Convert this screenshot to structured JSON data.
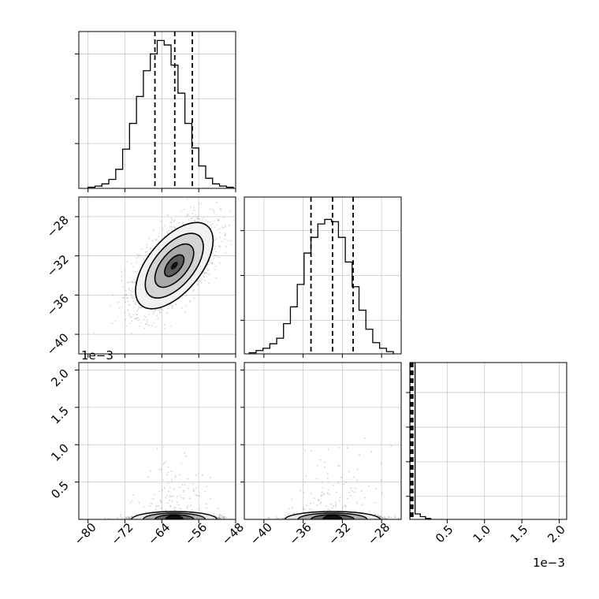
{
  "colors": {
    "line": "#000000",
    "grid": "#c8c8c8",
    "points": "#8a8a8a",
    "background": "#ffffff"
  },
  "chart_data": [
    {
      "type": "histogram",
      "panel": "x-marginal",
      "xlim": [
        -82,
        -48
      ],
      "grid": true,
      "quantiles": [
        -65.5,
        -61.2,
        -57.4
      ],
      "bin_edges": [
        -80,
        -78.5,
        -77,
        -75.5,
        -74,
        -72.5,
        -71,
        -69.5,
        -68,
        -66.5,
        -65,
        -63.5,
        -62,
        -60.5,
        -59,
        -57.5,
        -56,
        -54.5,
        -53,
        -51.5,
        -50,
        -48.5
      ],
      "counts": [
        1,
        2,
        4,
        8,
        17,
        35,
        58,
        82,
        105,
        120,
        132,
        128,
        110,
        85,
        58,
        36,
        20,
        9,
        4,
        2,
        1
      ],
      "ylim": [
        0,
        140
      ]
    },
    {
      "type": "histogram",
      "panel": "y-marginal",
      "xlim": [
        -42,
        -26
      ],
      "grid": true,
      "quantiles": [
        -35.2,
        -33.0,
        -30.9
      ],
      "bin_edges": [
        -41.5,
        -40.8,
        -40.1,
        -39.4,
        -38.7,
        -38,
        -37.3,
        -36.6,
        -35.9,
        -35.2,
        -34.5,
        -33.8,
        -33.1,
        -32.4,
        -31.7,
        -31,
        -30.3,
        -29.6,
        -28.9,
        -28.2,
        -27.5,
        -26.8
      ],
      "counts": [
        1,
        3,
        5,
        9,
        14,
        27,
        42,
        62,
        90,
        104,
        116,
        120,
        118,
        104,
        82,
        60,
        39,
        22,
        10,
        5,
        2
      ],
      "ylim": [
        0,
        140
      ]
    },
    {
      "type": "histogram",
      "panel": "z-marginal",
      "xlim": [
        0,
        0.0021
      ],
      "grid": true,
      "quantiles": [
        1e-05,
        2e-05,
        4e-05
      ],
      "bin_edges": [
        0.0,
        7e-05,
        0.00014,
        0.00021,
        0.00028
      ],
      "counts": [
        340,
        12,
        6,
        2
      ],
      "ylim": [
        0,
        340
      ]
    },
    {
      "type": "scatter",
      "panel": "x-vs-y",
      "xlim": [
        -82,
        -48
      ],
      "ylim": [
        -42,
        -26
      ],
      "center": [
        -61.3,
        -33.0
      ],
      "sd": [
        4.2,
        2.2
      ],
      "correlation": 0.58,
      "contour_levels_sigma": [
        0.5,
        1.0,
        1.5,
        2.0
      ]
    },
    {
      "type": "scatter",
      "panel": "x-vs-z",
      "xlim": [
        -82,
        -48
      ],
      "ylim": [
        0,
        0.0021
      ],
      "center": [
        -61.3,
        2e-05
      ]
    },
    {
      "type": "scatter",
      "panel": "y-vs-z",
      "xlim": [
        -42,
        -26
      ],
      "ylim": [
        0,
        0.0021
      ],
      "center": [
        -33.0,
        2e-05
      ]
    }
  ],
  "ticks": {
    "col1_x": [
      {
        "v": -80,
        "label": "−80"
      },
      {
        "v": -72,
        "label": "−72"
      },
      {
        "v": -64,
        "label": "−64"
      },
      {
        "v": -56,
        "label": "−56"
      },
      {
        "v": -48,
        "label": "−48"
      }
    ],
    "col2_x": [
      {
        "v": -40,
        "label": "−40"
      },
      {
        "v": -36,
        "label": "−36"
      },
      {
        "v": -32,
        "label": "−32"
      },
      {
        "v": -28,
        "label": "−28"
      }
    ],
    "col3_x": [
      {
        "v": 0.0005,
        "label": "0.5"
      },
      {
        "v": 0.001,
        "label": "1.0"
      },
      {
        "v": 0.0015,
        "label": "1.5"
      },
      {
        "v": 0.002,
        "label": "2.0"
      }
    ],
    "row2_y": [
      {
        "v": -28,
        "label": "−28"
      },
      {
        "v": -32,
        "label": "−32"
      },
      {
        "v": -36,
        "label": "−36"
      },
      {
        "v": -40,
        "label": "−40"
      }
    ],
    "row3_y": [
      {
        "v": 0.0005,
        "label": "0.5"
      },
      {
        "v": 0.001,
        "label": "1.0"
      },
      {
        "v": 0.0015,
        "label": "1.5"
      },
      {
        "v": 0.002,
        "label": "2.0"
      }
    ]
  },
  "offset_labels": {
    "row3_y": "1e−3",
    "col3_x": "1e−3"
  }
}
